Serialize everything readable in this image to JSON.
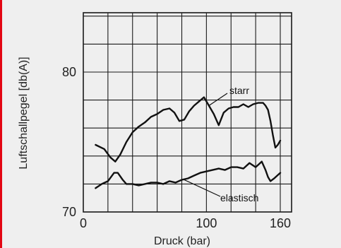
{
  "chart_data": {
    "type": "line",
    "title": "",
    "xlabel": "Druck (bar)",
    "ylabel": "Luftschallpegel [db(A)]",
    "xlim": [
      0,
      180
    ],
    "ylim": [
      70,
      86
    ],
    "xticks": [
      0,
      100,
      160
    ],
    "xtick_labels": [
      "0",
      "100",
      "160"
    ],
    "yticks": [
      70,
      80
    ],
    "ytick_labels": [
      "70",
      "80"
    ],
    "grid": true,
    "grid_x_step": 20,
    "grid_y_step": 2,
    "series": [
      {
        "name": "starr",
        "x": [
          10,
          17,
          22,
          26,
          30,
          35,
          40,
          45,
          50,
          55,
          60,
          65,
          70,
          74,
          78,
          82,
          86,
          90,
          94,
          98,
          102,
          106,
          110,
          114,
          118,
          122,
          126,
          130,
          134,
          138,
          142,
          146,
          148,
          150,
          152,
          154,
          156,
          158,
          160
        ],
        "values": [
          74.8,
          74.5,
          73.9,
          73.6,
          74.1,
          75.0,
          75.7,
          76.1,
          76.4,
          76.8,
          77.0,
          77.3,
          77.4,
          77.1,
          76.5,
          76.6,
          77.2,
          77.6,
          77.9,
          78.2,
          77.6,
          77.0,
          76.2,
          77.1,
          77.4,
          77.5,
          77.5,
          77.7,
          77.5,
          77.7,
          77.8,
          77.8,
          77.6,
          77.3,
          76.5,
          75.5,
          74.6,
          74.8,
          75.1
        ]
      },
      {
        "name": "elastisch",
        "x": [
          10,
          15,
          20,
          25,
          28,
          32,
          35,
          40,
          45,
          50,
          55,
          60,
          65,
          70,
          75,
          80,
          85,
          90,
          95,
          100,
          105,
          110,
          115,
          120,
          125,
          130,
          135,
          140,
          145,
          148,
          150,
          152,
          155,
          160
        ],
        "values": [
          71.7,
          72.0,
          72.2,
          72.8,
          72.8,
          72.3,
          72.0,
          72.0,
          71.9,
          72.0,
          72.1,
          72.1,
          72.0,
          72.2,
          72.1,
          72.3,
          72.4,
          72.6,
          72.8,
          72.9,
          73.0,
          73.1,
          73.0,
          73.2,
          73.2,
          73.1,
          73.5,
          73.2,
          73.6,
          73.0,
          72.5,
          72.2,
          72.4,
          72.8
        ]
      }
    ],
    "annotations": [
      {
        "text": "starr",
        "series": "starr"
      },
      {
        "text": "elastisch",
        "series": "elastisch"
      }
    ]
  }
}
